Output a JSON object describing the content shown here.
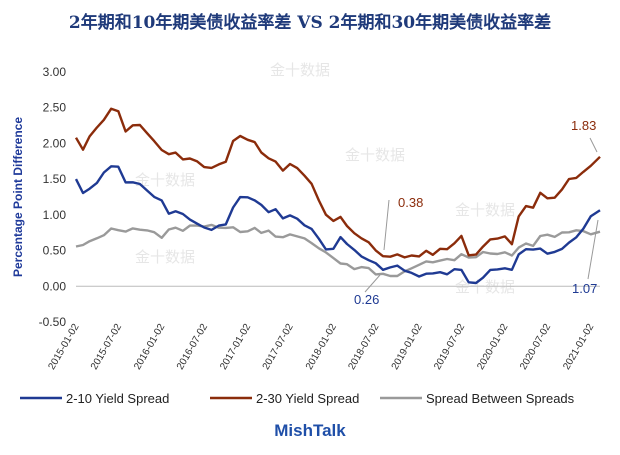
{
  "watermark_text": "金十数据",
  "footer": {
    "brand": "MishTalk"
  },
  "chart_data": {
    "type": "line",
    "title": "2年期和10年期美债收益率差 VS 2年期和30年期美债收益率差",
    "ylabel": "Percentage Point Difference",
    "ylim": [
      -0.5,
      3.0
    ],
    "yticks": [
      "3.00",
      "2.50",
      "2.00",
      "1.50",
      "1.00",
      "0.50",
      "0.00",
      "-0.50"
    ],
    "xrange": [
      "2015-01-02",
      "2021-02-10"
    ],
    "xticks": [
      "2015-01-02",
      "2015-07-02",
      "2016-01-02",
      "2016-07-02",
      "2017-01-02",
      "2017-07-02",
      "2018-01-02",
      "2018-07-02",
      "2019-01-02",
      "2019-07-02",
      "2020-01-02",
      "2020-07-02",
      "2021-01-02"
    ],
    "grid": false,
    "legend_position": "bottom",
    "series": [
      {
        "name": "2-10 Yield Spread",
        "color": "#1f3a93",
        "x": [
          "2015-01-02",
          "2015-02-01",
          "2015-03-01",
          "2015-04-01",
          "2015-05-01",
          "2015-06-01",
          "2015-07-01",
          "2015-08-01",
          "2015-09-01",
          "2015-10-01",
          "2015-11-01",
          "2015-12-01",
          "2016-01-02",
          "2016-02-01",
          "2016-03-01",
          "2016-04-01",
          "2016-05-01",
          "2016-06-01",
          "2016-07-01",
          "2016-08-01",
          "2016-09-01",
          "2016-10-01",
          "2016-11-01",
          "2016-12-01",
          "2017-01-02",
          "2017-02-01",
          "2017-03-01",
          "2017-04-01",
          "2017-05-01",
          "2017-06-01",
          "2017-07-01",
          "2017-08-01",
          "2017-09-01",
          "2017-10-01",
          "2017-11-01",
          "2017-12-01",
          "2018-01-02",
          "2018-02-01",
          "2018-03-01",
          "2018-04-01",
          "2018-05-01",
          "2018-06-01",
          "2018-07-01",
          "2018-08-01",
          "2018-09-01",
          "2018-10-01",
          "2018-11-01",
          "2018-12-01",
          "2019-01-02",
          "2019-02-01",
          "2019-03-01",
          "2019-04-01",
          "2019-05-01",
          "2019-06-01",
          "2019-07-01",
          "2019-08-01",
          "2019-09-01",
          "2019-10-01",
          "2019-11-01",
          "2019-12-01",
          "2020-01-02",
          "2020-02-01",
          "2020-03-01",
          "2020-04-01",
          "2020-05-01",
          "2020-06-01",
          "2020-07-01",
          "2020-08-01",
          "2020-09-01",
          "2020-10-01",
          "2020-11-01",
          "2020-12-01",
          "2021-01-02",
          "2021-02-10"
        ],
        "values": [
          1.5,
          1.3,
          1.4,
          1.45,
          1.6,
          1.7,
          1.65,
          1.45,
          1.45,
          1.4,
          1.35,
          1.25,
          1.2,
          1.05,
          1.05,
          1.02,
          0.95,
          0.85,
          0.82,
          0.78,
          0.82,
          0.88,
          1.1,
          1.25,
          1.28,
          1.2,
          1.15,
          1.05,
          1.05,
          0.95,
          0.98,
          0.92,
          0.87,
          0.8,
          0.67,
          0.55,
          0.52,
          0.7,
          0.6,
          0.48,
          0.42,
          0.35,
          0.3,
          0.25,
          0.26,
          0.3,
          0.25,
          0.18,
          0.15,
          0.18,
          0.15,
          0.2,
          0.15,
          0.22,
          0.25,
          0.05,
          0.06,
          0.15,
          0.22,
          0.25,
          0.25,
          0.2,
          0.45,
          0.5,
          0.5,
          0.55,
          0.45,
          0.5,
          0.55,
          0.6,
          0.7,
          0.8,
          0.95,
          1.07
        ]
      },
      {
        "name": "2-30 Yield Spread",
        "color": "#8b2c0b",
        "x": [
          "2015-01-02",
          "2015-02-01",
          "2015-03-01",
          "2015-04-01",
          "2015-05-01",
          "2015-06-01",
          "2015-07-01",
          "2015-08-01",
          "2015-09-01",
          "2015-10-01",
          "2015-11-01",
          "2015-12-01",
          "2016-01-02",
          "2016-02-01",
          "2016-03-01",
          "2016-04-01",
          "2016-05-01",
          "2016-06-01",
          "2016-07-01",
          "2016-08-01",
          "2016-09-01",
          "2016-10-01",
          "2016-11-01",
          "2016-12-01",
          "2017-01-02",
          "2017-02-01",
          "2017-03-01",
          "2017-04-01",
          "2017-05-01",
          "2017-06-01",
          "2017-07-01",
          "2017-08-01",
          "2017-09-01",
          "2017-10-01",
          "2017-11-01",
          "2017-12-01",
          "2018-01-02",
          "2018-02-01",
          "2018-03-01",
          "2018-04-01",
          "2018-05-01",
          "2018-06-01",
          "2018-07-01",
          "2018-08-01",
          "2018-09-01",
          "2018-10-01",
          "2018-11-01",
          "2018-12-01",
          "2019-01-02",
          "2019-02-01",
          "2019-03-01",
          "2019-04-01",
          "2019-05-01",
          "2019-06-01",
          "2019-07-01",
          "2019-08-01",
          "2019-09-01",
          "2019-10-01",
          "2019-11-01",
          "2019-12-01",
          "2020-01-02",
          "2020-02-01",
          "2020-03-01",
          "2020-04-01",
          "2020-05-01",
          "2020-06-01",
          "2020-07-01",
          "2020-08-01",
          "2020-09-01",
          "2020-10-01",
          "2020-11-01",
          "2020-12-01",
          "2021-01-02",
          "2021-02-10"
        ],
        "values": [
          2.05,
          1.9,
          2.1,
          2.2,
          2.35,
          2.5,
          2.45,
          2.2,
          2.25,
          2.25,
          2.15,
          2.0,
          1.9,
          1.85,
          1.85,
          1.8,
          1.8,
          1.75,
          1.7,
          1.65,
          1.7,
          1.75,
          2.0,
          2.1,
          2.05,
          2.0,
          1.9,
          1.8,
          1.75,
          1.65,
          1.7,
          1.65,
          1.55,
          1.4,
          1.2,
          1.0,
          0.9,
          1.0,
          0.85,
          0.75,
          0.7,
          0.6,
          0.5,
          0.42,
          0.38,
          0.45,
          0.4,
          0.42,
          0.45,
          0.5,
          0.45,
          0.55,
          0.5,
          0.6,
          0.7,
          0.4,
          0.45,
          0.55,
          0.65,
          0.7,
          0.7,
          0.6,
          1.0,
          1.1,
          1.1,
          1.3,
          1.2,
          1.25,
          1.35,
          1.5,
          1.55,
          1.6,
          1.7,
          1.83
        ]
      },
      {
        "name": "Spread Between Spreads",
        "color": "#9a9a9a",
        "x": [
          "2015-01-02",
          "2015-02-01",
          "2015-03-01",
          "2015-04-01",
          "2015-05-01",
          "2015-06-01",
          "2015-07-01",
          "2015-08-01",
          "2015-09-01",
          "2015-10-01",
          "2015-11-01",
          "2015-12-01",
          "2016-01-02",
          "2016-02-01",
          "2016-03-01",
          "2016-04-01",
          "2016-05-01",
          "2016-06-01",
          "2016-07-01",
          "2016-08-01",
          "2016-09-01",
          "2016-10-01",
          "2016-11-01",
          "2016-12-01",
          "2017-01-02",
          "2017-02-01",
          "2017-03-01",
          "2017-04-01",
          "2017-05-01",
          "2017-06-01",
          "2017-07-01",
          "2017-08-01",
          "2017-09-01",
          "2017-10-01",
          "2017-11-01",
          "2017-12-01",
          "2018-01-02",
          "2018-02-01",
          "2018-03-01",
          "2018-04-01",
          "2018-05-01",
          "2018-06-01",
          "2018-07-01",
          "2018-08-01",
          "2018-09-01",
          "2018-10-01",
          "2018-11-01",
          "2018-12-01",
          "2019-01-02",
          "2019-02-01",
          "2019-03-01",
          "2019-04-01",
          "2019-05-01",
          "2019-06-01",
          "2019-07-01",
          "2019-08-01",
          "2019-09-01",
          "2019-10-01",
          "2019-11-01",
          "2019-12-01",
          "2020-01-02",
          "2020-02-01",
          "2020-03-01",
          "2020-04-01",
          "2020-05-01",
          "2020-06-01",
          "2020-07-01",
          "2020-08-01",
          "2020-09-01",
          "2020-10-01",
          "2020-11-01",
          "2020-12-01",
          "2021-01-02",
          "2021-02-10"
        ],
        "values": [
          0.55,
          0.6,
          0.62,
          0.65,
          0.72,
          0.78,
          0.78,
          0.78,
          0.8,
          0.82,
          0.8,
          0.75,
          0.7,
          0.78,
          0.8,
          0.78,
          0.82,
          0.85,
          0.85,
          0.85,
          0.85,
          0.83,
          0.82,
          0.78,
          0.75,
          0.8,
          0.75,
          0.75,
          0.7,
          0.7,
          0.72,
          0.73,
          0.68,
          0.6,
          0.55,
          0.45,
          0.38,
          0.32,
          0.28,
          0.25,
          0.28,
          0.25,
          0.2,
          0.18,
          0.14,
          0.16,
          0.18,
          0.24,
          0.3,
          0.32,
          0.35,
          0.37,
          0.38,
          0.4,
          0.45,
          0.4,
          0.42,
          0.45,
          0.45,
          0.45,
          0.45,
          0.45,
          0.55,
          0.6,
          0.6,
          0.7,
          0.72,
          0.7,
          0.72,
          0.75,
          0.78,
          0.75,
          0.75,
          0.77
        ]
      }
    ],
    "annotations": [
      {
        "text": "0.38",
        "x": "2018-09-01",
        "y": 0.38,
        "color": "#8b2c0b"
      },
      {
        "text": "0.26",
        "x": "2018-09-01",
        "y": 0.26,
        "color": "#1f3a93"
      },
      {
        "text": "1.83",
        "x": "2021-02-10",
        "y": 1.83,
        "color": "#8b2c0b"
      },
      {
        "text": "1.07",
        "x": "2021-02-10",
        "y": 1.07,
        "color": "#1f3a93"
      }
    ]
  }
}
